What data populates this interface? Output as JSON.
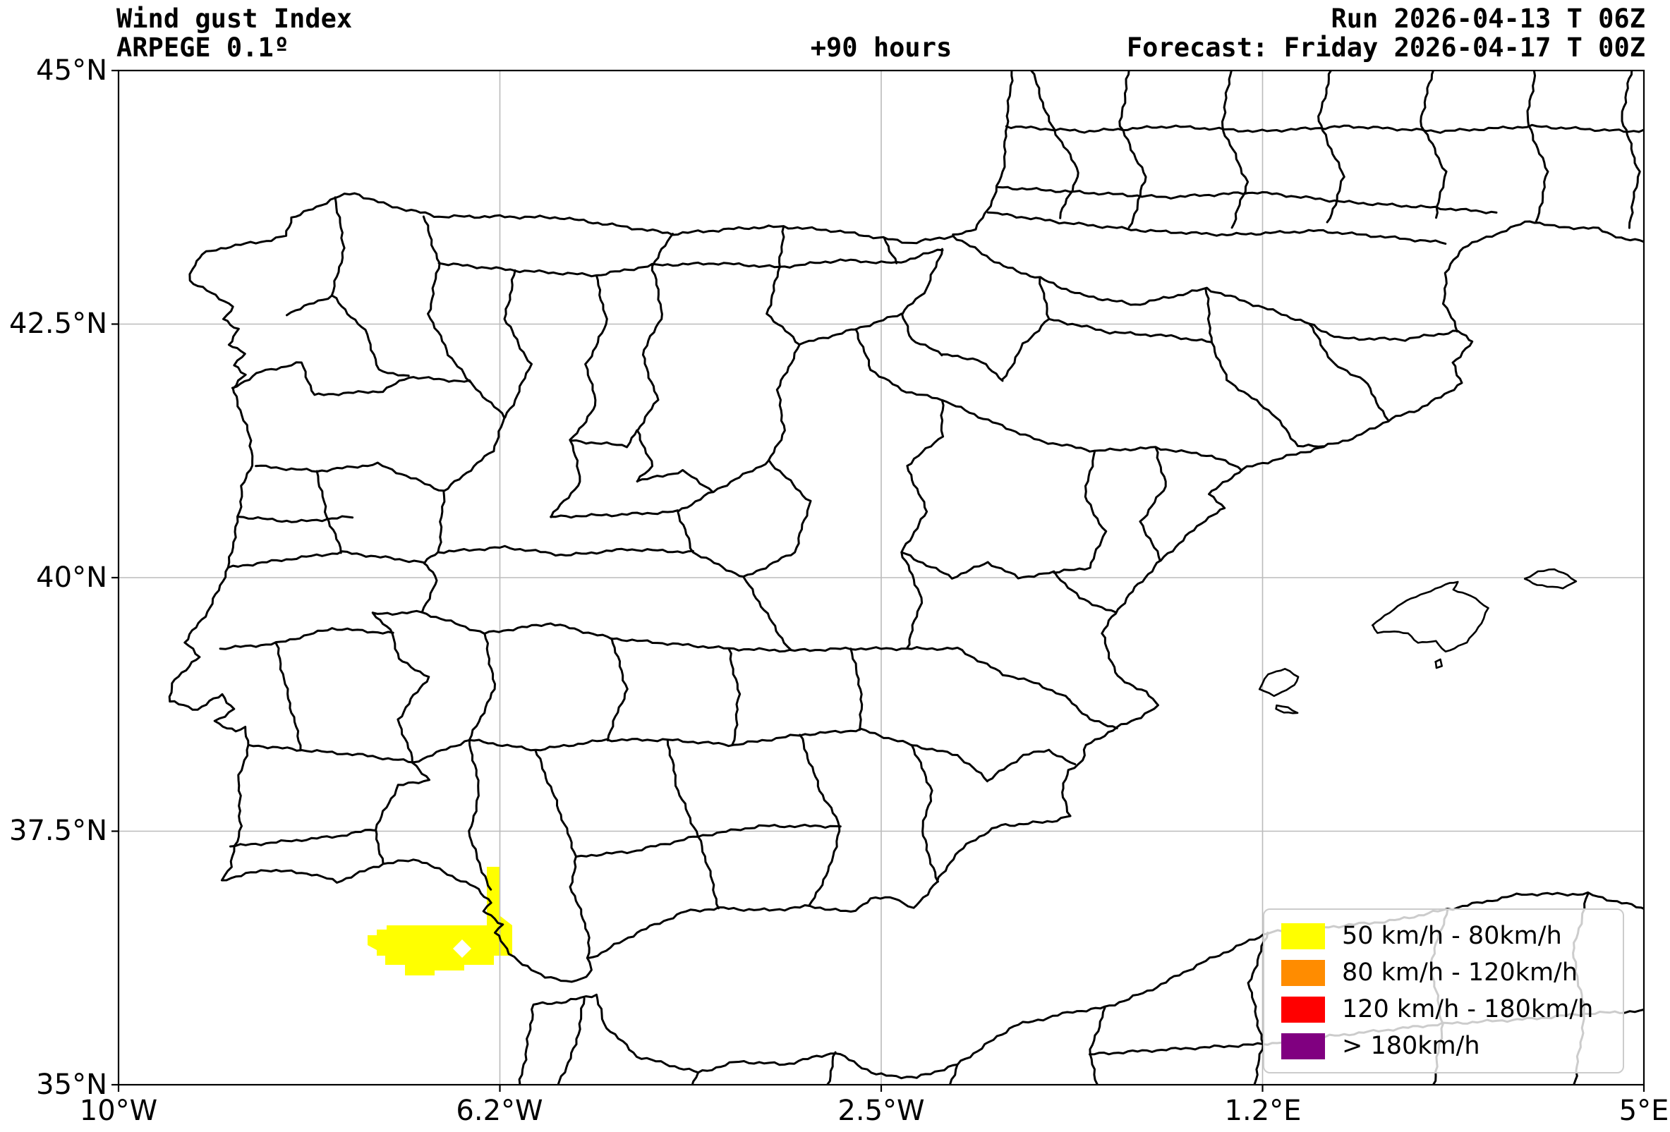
{
  "header": {
    "title": "Wind gust Index",
    "subtitle": "ARPEGE 0.1º",
    "lead_time": "+90 hours",
    "run": "Run 2026-04-13 T 06Z",
    "forecast": "Forecast: Friday 2026-04-17 T 00Z"
  },
  "axes": {
    "x_ticks": [
      "10°W",
      "6.2°W",
      "2.5°W",
      "1.2°E",
      "5°E"
    ],
    "y_ticks": [
      "45°N",
      "42.5°N",
      "40°N",
      "37.5°N",
      "35°N"
    ]
  },
  "legend": {
    "items": [
      {
        "label": "50 km/h - 80km/h",
        "color": "#ffff00"
      },
      {
        "label": "80 km/h - 120km/h",
        "color": "#ff8c00"
      },
      {
        "label": "120 km/h - 180km/h",
        "color": "#ff0000"
      },
      {
        "label": "> 180km/h",
        "color": "#800080"
      }
    ]
  },
  "map": {
    "extent": {
      "west": "10°W",
      "east": "5°E",
      "south": "35°N",
      "north": "45°N"
    },
    "grid_color": "#bbbbbb",
    "boundary_color": "#000000",
    "shaded_regions": [
      {
        "category": "50 km/h - 80km/h",
        "color": "#ffff00"
      }
    ]
  }
}
